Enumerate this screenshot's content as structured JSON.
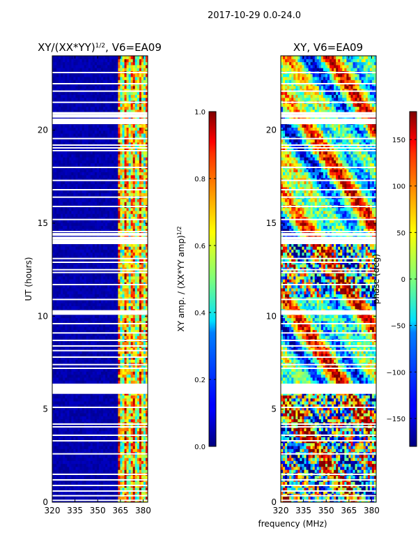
{
  "suptitle": "2017-10-29 0.0-24.0",
  "xlabel_shared": "frequency (MHz)",
  "chart_data": [
    {
      "type": "heatmap",
      "title": "XY/(XX*YY)",
      "title_exponent": "1/2",
      "title_suffix": ", V6=EA09",
      "ylabel": "UT (hours)",
      "xlim": [
        320,
        383
      ],
      "ylim": [
        0,
        24
      ],
      "xticks": [
        320,
        335,
        350,
        365,
        380
      ],
      "yticks": [
        0,
        5,
        10,
        15,
        20
      ],
      "colormap": "jet",
      "colorbar": {
        "label": "XY amp. / (XX*YY amp)",
        "label_exponent": "1/2",
        "range": [
          0.0,
          1.0
        ],
        "ticks": [
          "0.0",
          "0.2",
          "0.4",
          "0.6",
          "0.8",
          "1.0"
        ]
      }
    },
    {
      "type": "heatmap",
      "title": "XY, V6=EA09",
      "xlim": [
        320,
        383
      ],
      "ylim": [
        0,
        24
      ],
      "xticks": [
        320,
        335,
        350,
        365,
        380
      ],
      "yticks": [
        0,
        5,
        10,
        15,
        20
      ],
      "colormap": "jet",
      "colorbar": {
        "label": "phase (deg)",
        "range": [
          -180,
          180
        ],
        "ticks": [
          "−150",
          "−100",
          "−50",
          "0",
          "50",
          "100",
          "150"
        ]
      }
    }
  ],
  "flagged_hours": [
    0.1,
    0.35,
    0.6,
    0.9,
    1.2,
    1.5,
    2.6,
    3.3,
    3.6,
    4.05,
    4.2,
    5.1,
    5.9,
    6.0,
    6.15,
    6.3,
    7.2,
    7.4,
    7.8,
    8.15,
    8.4,
    8.7,
    9.1,
    9.6,
    10.15,
    10.25,
    10.9,
    11.7,
    12.35,
    12.5,
    12.9,
    13.1,
    13.95,
    14.05,
    14.2,
    14.4,
    14.55,
    15.2,
    15.9,
    16.4,
    16.8,
    17.3,
    18.0,
    18.9,
    19.05,
    19.2,
    19.55,
    20.4,
    20.55,
    20.75,
    20.9,
    21.5,
    22.1,
    22.5,
    23.1
  ]
}
